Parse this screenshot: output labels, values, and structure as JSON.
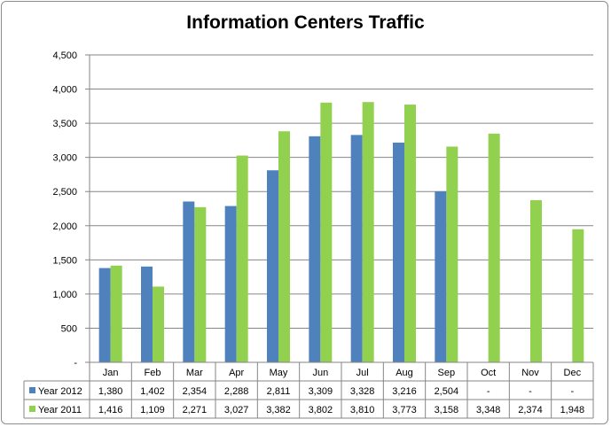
{
  "chart_data": {
    "type": "bar",
    "title": "Information Centers Traffic",
    "categories": [
      "Jan",
      "Feb",
      "Mar",
      "Apr",
      "May",
      "Jun",
      "Jul",
      "Aug",
      "Sep",
      "Oct",
      "Nov",
      "Dec"
    ],
    "yticks": [
      "-",
      "500",
      "1,000",
      "1,500",
      "2,000",
      "2,500",
      "3,000",
      "3,500",
      "4,000",
      "4,500"
    ],
    "ylim": [
      0,
      4500
    ],
    "grid": true,
    "legend": "data-table-left",
    "series": [
      {
        "name": "Year 2012",
        "color": "#4f81bd",
        "values": [
          1380,
          1402,
          2354,
          2288,
          2811,
          3309,
          3328,
          3216,
          2504,
          null,
          null,
          null
        ],
        "labels": [
          "1,380",
          "1,402",
          "2,354",
          "2,288",
          "2,811",
          "3,309",
          "3,328",
          "3,216",
          "2,504",
          "-",
          "-",
          "-"
        ]
      },
      {
        "name": "Year 2011",
        "color": "#92d050",
        "values": [
          1416,
          1109,
          2271,
          3027,
          3382,
          3802,
          3810,
          3773,
          3158,
          3348,
          2374,
          1948
        ],
        "labels": [
          "1,416",
          "1,109",
          "2,271",
          "3,027",
          "3,382",
          "3,802",
          "3,810",
          "3,773",
          "3,158",
          "3,348",
          "2,374",
          "1,948"
        ]
      }
    ]
  }
}
